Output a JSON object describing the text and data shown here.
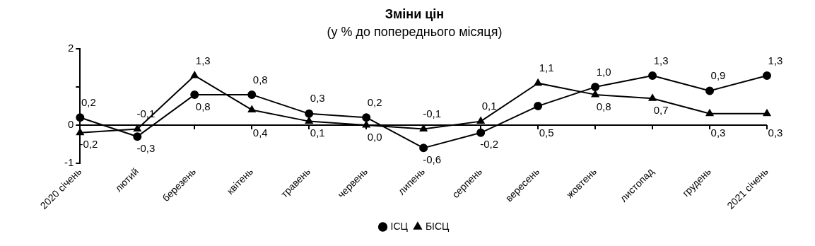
{
  "chart_data": {
    "type": "line",
    "title": "Зміни цін",
    "subtitle": "(у % до попереднього місяця)",
    "categories": [
      "2020 січень",
      "лютий",
      "березень",
      "квітень",
      "травень",
      "червень",
      "липень",
      "серпень",
      "вересень",
      "жовтень",
      "листопад",
      "грудень",
      "2021 січень"
    ],
    "series": [
      {
        "name": "ІСЦ",
        "color": "#000000",
        "marker": "circle",
        "values": [
          0.2,
          -0.3,
          0.8,
          0.8,
          0.3,
          0.2,
          -0.6,
          -0.2,
          0.5,
          1.0,
          1.3,
          0.9,
          1.3
        ],
        "value_labels": [
          "0,2",
          "-0,3",
          "0,8",
          "0,8",
          "0,3",
          "0,2",
          "-0,6",
          "-0,2",
          "0,5",
          "1,0",
          "1,3",
          "0,9",
          "1,3"
        ]
      },
      {
        "name": "БІСЦ",
        "color": "#000000",
        "marker": "triangle",
        "values": [
          -0.2,
          -0.1,
          1.3,
          0.4,
          0.1,
          0.0,
          -0.1,
          0.1,
          1.1,
          0.8,
          0.7,
          0.3,
          0.3
        ],
        "value_labels": [
          "-0,2",
          "-0,1",
          "1,3",
          "0,4",
          "0,1",
          "0,0",
          "-0,1",
          "0,1",
          "1,1",
          "0,8",
          "0,7",
          "0,3",
          "0,3"
        ]
      }
    ],
    "ylim": [
      -1,
      2
    ],
    "yticks": [
      -1,
      0,
      {
        "value": 1,
        "label": null
      },
      2
    ],
    "ref_lines": [
      {
        "axis": "y",
        "value": 0,
        "color": "#000000"
      }
    ],
    "grid": false,
    "legend": "bottom",
    "line_style": "solid"
  }
}
